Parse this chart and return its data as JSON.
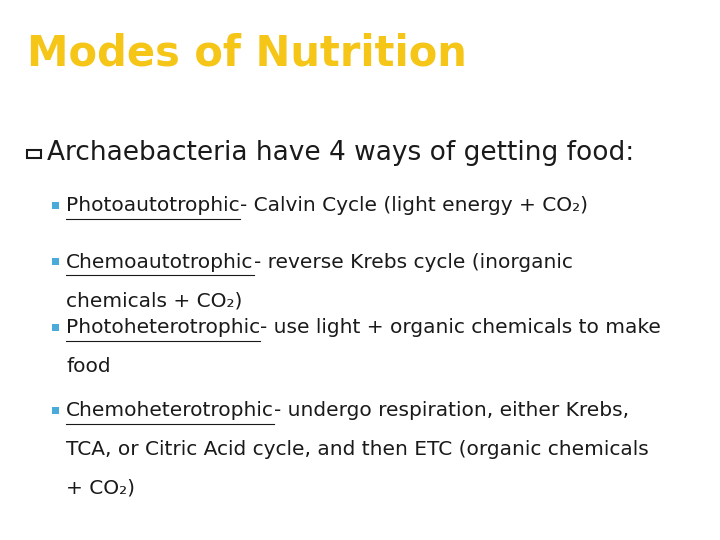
{
  "title": "Modes of Nutrition",
  "title_color": "#F5C518",
  "title_bg_color": "#000000",
  "title_fontsize": 30,
  "body_bg_color": "#FFFFFF",
  "heading_color": "#1a1a1a",
  "heading_fontsize": 19,
  "bullet_marker_color": "#4AABDB",
  "bullet_fontsize": 14.5,
  "text_color": "#1a1a1a",
  "bullets": [
    {
      "underline_part": "Photoautotrophic",
      "rest_part": "- Calvin Cycle (light energy + CO₂)"
    },
    {
      "underline_part": "Chemoautotrophic",
      "rest_part": "- reverse Krebs cycle (inorganic\nchemicals + CO₂)"
    },
    {
      "underline_part": "Photoheterotrophic",
      "rest_part": "- use light + organic chemicals to make\nfood"
    },
    {
      "underline_part": "Chemoheterotrophic",
      "rest_part": "- undergo respiration, either Krebs,\nTCA, or Citric Acid cycle, and then ETC (organic chemicals\n+ CO₂)"
    }
  ]
}
